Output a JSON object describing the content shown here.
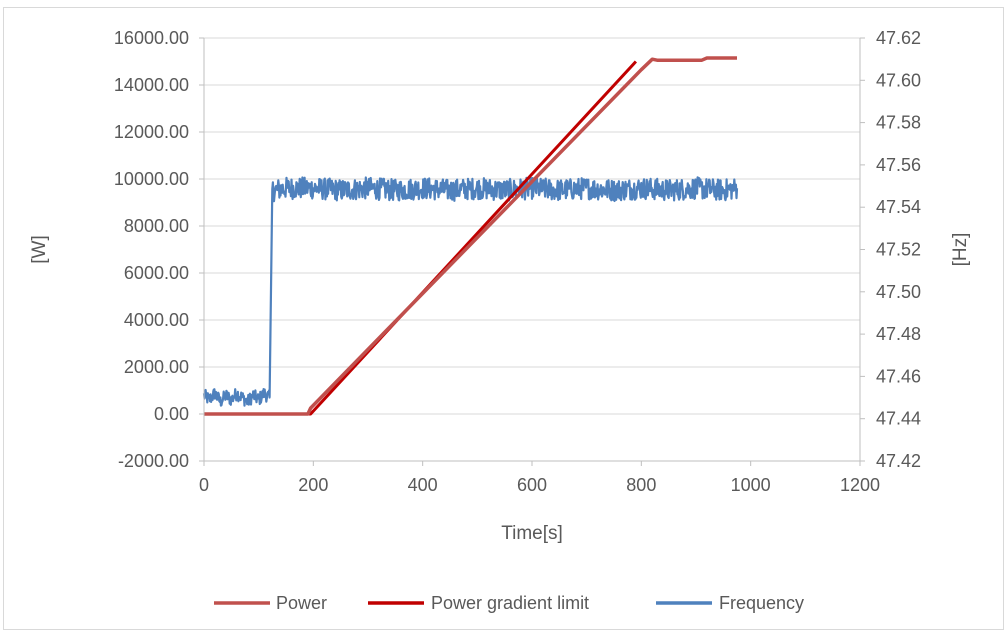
{
  "chart_data": {
    "type": "line",
    "title": "",
    "xlabel": "Time[s]",
    "ylabel": "[W]",
    "y2label": "[Hz]",
    "xlim": [
      0,
      1200
    ],
    "ylim": [
      -2000,
      16000
    ],
    "y2lim": [
      47.42,
      47.62
    ],
    "x_ticks": [
      "0",
      "200",
      "400",
      "600",
      "800",
      "1000",
      "1200"
    ],
    "y_ticks": [
      "-2000.00",
      "0.00",
      "2000.00",
      "4000.00",
      "6000.00",
      "8000.00",
      "10000.00",
      "12000.00",
      "14000.00",
      "16000.00"
    ],
    "y2_ticks": [
      "47.42",
      "47.44",
      "47.46",
      "47.48",
      "47.50",
      "47.52",
      "47.54",
      "47.56",
      "47.58",
      "47.60",
      "47.62"
    ],
    "grid": "horizontal",
    "legend_position": "bottom",
    "series": [
      {
        "name": "Power",
        "axis": "left",
        "color": "#c0504d",
        "x": [
          0,
          190,
          195,
          800,
          820,
          830,
          910,
          920,
          975
        ],
        "y": [
          0,
          0,
          250,
          14650,
          15100,
          15050,
          15050,
          15150,
          15150
        ]
      },
      {
        "name": "Power gradient limit",
        "axis": "left",
        "color": "#c00000",
        "x": [
          0,
          195,
          790
        ],
        "y": [
          0,
          0,
          15000
        ]
      },
      {
        "name": "Frequency",
        "axis": "right",
        "color": "#4f81bd",
        "x": [
          0,
          10,
          20,
          30,
          40,
          50,
          60,
          70,
          80,
          90,
          100,
          110,
          120,
          125,
          130,
          150,
          200,
          250,
          300,
          350,
          400,
          450,
          500,
          550,
          600,
          650,
          700,
          750,
          800,
          850,
          900,
          950,
          975
        ],
        "y": [
          47.451,
          47.449,
          47.452,
          47.448,
          47.451,
          47.449,
          47.452,
          47.45,
          47.448,
          47.451,
          47.449,
          47.452,
          47.45,
          47.548,
          47.548,
          47.549,
          47.549,
          47.548,
          47.549,
          47.548,
          47.549,
          47.548,
          47.549,
          47.548,
          47.549,
          47.548,
          47.549,
          47.548,
          47.549,
          47.548,
          47.549,
          47.548,
          47.549
        ],
        "noise": 0.004
      }
    ]
  }
}
